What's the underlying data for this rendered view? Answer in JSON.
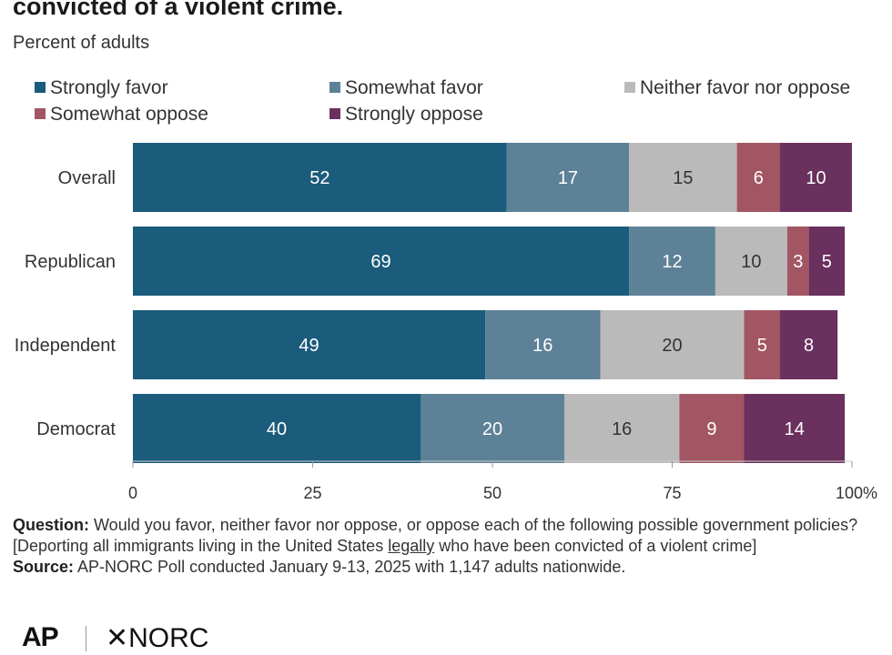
{
  "chart_data": {
    "type": "bar",
    "orientation": "horizontal",
    "stacked": true,
    "title": "convicted of a violent crime.",
    "subtitle": "Percent of adults",
    "categories": [
      "Overall",
      "Republican",
      "Independent",
      "Democrat"
    ],
    "series": [
      {
        "name": "Strongly favor",
        "color": "#1b5b7b",
        "values": [
          52,
          69,
          49,
          40
        ]
      },
      {
        "name": "Somewhat favor",
        "color": "#5d8197",
        "values": [
          17,
          12,
          16,
          20
        ]
      },
      {
        "name": "Neither favor nor oppose",
        "color": "#bababa",
        "values": [
          15,
          10,
          20,
          16
        ]
      },
      {
        "name": "Somewhat oppose",
        "color": "#a25663",
        "values": [
          6,
          3,
          5,
          9
        ]
      },
      {
        "name": "Strongly oppose",
        "color": "#6a305e",
        "values": [
          10,
          5,
          8,
          14
        ]
      }
    ],
    "xlim": [
      0,
      100
    ],
    "xticks": [
      "0",
      "25",
      "50",
      "75",
      "100%"
    ],
    "legend_position": "top",
    "grid": false
  },
  "notes": {
    "question_label": "Question:",
    "question_text_1": "Would you favor, neither favor nor oppose, or oppose each of the following possible government policies? [Deporting all immigrants living in the United States ",
    "question_underlined": "legally",
    "question_text_2": " who have been convicted of a violent crime]",
    "source_label": "Source:",
    "source_text": "AP-NORC Poll conducted January 9-13, 2025 with 1,147 adults nationwide."
  },
  "logos": {
    "ap": "AP",
    "norc_symbol": "✕",
    "norc": "NORC"
  }
}
